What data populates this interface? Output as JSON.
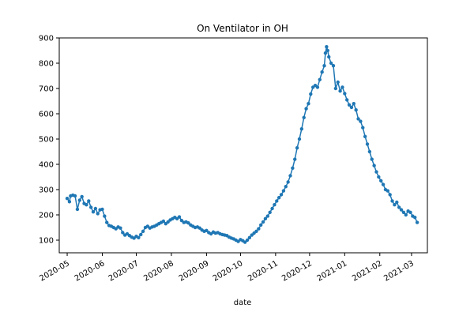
{
  "chart_data": {
    "type": "line",
    "title": "On Ventilator in OH",
    "xlabel": "date",
    "ylabel": "",
    "ylim": [
      50,
      900
    ],
    "xlim": [
      "2020-04-24",
      "2021-03-15"
    ],
    "x_ticks": [
      "2020-05",
      "2020-06",
      "2020-07",
      "2020-08",
      "2020-09",
      "2020-10",
      "2020-11",
      "2020-12",
      "2021-01",
      "2021-02",
      "2021-03"
    ],
    "y_ticks": [
      100,
      200,
      300,
      400,
      500,
      600,
      700,
      800,
      900
    ],
    "marker": "circle",
    "grid": false,
    "series": [
      {
        "color": "#1f77b4",
        "points": [
          [
            "2020-05-01",
            265
          ],
          [
            "2020-05-03",
            252
          ],
          [
            "2020-05-04",
            275
          ],
          [
            "2020-05-06",
            278
          ],
          [
            "2020-05-08",
            275
          ],
          [
            "2020-05-10",
            222
          ],
          [
            "2020-05-12",
            258
          ],
          [
            "2020-05-14",
            272
          ],
          [
            "2020-05-16",
            245
          ],
          [
            "2020-05-18",
            240
          ],
          [
            "2020-05-20",
            255
          ],
          [
            "2020-05-22",
            230
          ],
          [
            "2020-05-24",
            212
          ],
          [
            "2020-05-26",
            225
          ],
          [
            "2020-05-28",
            205
          ],
          [
            "2020-05-30",
            220
          ],
          [
            "2020-06-01",
            222
          ],
          [
            "2020-06-03",
            195
          ],
          [
            "2020-06-05",
            170
          ],
          [
            "2020-06-07",
            158
          ],
          [
            "2020-06-09",
            155
          ],
          [
            "2020-06-11",
            150
          ],
          [
            "2020-06-13",
            145
          ],
          [
            "2020-06-15",
            152
          ],
          [
            "2020-06-17",
            148
          ],
          [
            "2020-06-19",
            130
          ],
          [
            "2020-06-21",
            120
          ],
          [
            "2020-06-23",
            125
          ],
          [
            "2020-06-25",
            118
          ],
          [
            "2020-06-27",
            112
          ],
          [
            "2020-06-29",
            108
          ],
          [
            "2020-07-01",
            115
          ],
          [
            "2020-07-03",
            110
          ],
          [
            "2020-07-05",
            122
          ],
          [
            "2020-07-07",
            135
          ],
          [
            "2020-07-09",
            150
          ],
          [
            "2020-07-11",
            155
          ],
          [
            "2020-07-13",
            148
          ],
          [
            "2020-07-15",
            152
          ],
          [
            "2020-07-17",
            155
          ],
          [
            "2020-07-19",
            160
          ],
          [
            "2020-07-21",
            165
          ],
          [
            "2020-07-23",
            170
          ],
          [
            "2020-07-25",
            175
          ],
          [
            "2020-07-27",
            165
          ],
          [
            "2020-07-29",
            172
          ],
          [
            "2020-07-31",
            180
          ],
          [
            "2020-08-02",
            185
          ],
          [
            "2020-08-04",
            190
          ],
          [
            "2020-08-06",
            185
          ],
          [
            "2020-08-08",
            192
          ],
          [
            "2020-08-10",
            178
          ],
          [
            "2020-08-12",
            170
          ],
          [
            "2020-08-14",
            172
          ],
          [
            "2020-08-16",
            168
          ],
          [
            "2020-08-18",
            160
          ],
          [
            "2020-08-20",
            155
          ],
          [
            "2020-08-22",
            150
          ],
          [
            "2020-08-24",
            152
          ],
          [
            "2020-08-26",
            148
          ],
          [
            "2020-08-28",
            140
          ],
          [
            "2020-08-30",
            135
          ],
          [
            "2020-09-01",
            138
          ],
          [
            "2020-09-03",
            130
          ],
          [
            "2020-09-05",
            125
          ],
          [
            "2020-09-07",
            132
          ],
          [
            "2020-09-09",
            128
          ],
          [
            "2020-09-11",
            130
          ],
          [
            "2020-09-13",
            125
          ],
          [
            "2020-09-15",
            122
          ],
          [
            "2020-09-17",
            120
          ],
          [
            "2020-09-19",
            118
          ],
          [
            "2020-09-21",
            112
          ],
          [
            "2020-09-23",
            108
          ],
          [
            "2020-09-25",
            105
          ],
          [
            "2020-09-27",
            100
          ],
          [
            "2020-09-29",
            95
          ],
          [
            "2020-10-01",
            102
          ],
          [
            "2020-10-03",
            98
          ],
          [
            "2020-10-05",
            92
          ],
          [
            "2020-10-07",
            100
          ],
          [
            "2020-10-09",
            110
          ],
          [
            "2020-10-11",
            120
          ],
          [
            "2020-10-13",
            128
          ],
          [
            "2020-10-15",
            135
          ],
          [
            "2020-10-17",
            145
          ],
          [
            "2020-10-19",
            160
          ],
          [
            "2020-10-21",
            172
          ],
          [
            "2020-10-23",
            185
          ],
          [
            "2020-10-25",
            195
          ],
          [
            "2020-10-27",
            210
          ],
          [
            "2020-10-29",
            225
          ],
          [
            "2020-10-31",
            240
          ],
          [
            "2020-11-02",
            255
          ],
          [
            "2020-11-04",
            268
          ],
          [
            "2020-11-06",
            280
          ],
          [
            "2020-11-08",
            295
          ],
          [
            "2020-11-10",
            312
          ],
          [
            "2020-11-12",
            330
          ],
          [
            "2020-11-14",
            355
          ],
          [
            "2020-11-16",
            385
          ],
          [
            "2020-11-18",
            420
          ],
          [
            "2020-11-20",
            465
          ],
          [
            "2020-11-22",
            500
          ],
          [
            "2020-11-24",
            540
          ],
          [
            "2020-11-26",
            585
          ],
          [
            "2020-11-28",
            620
          ],
          [
            "2020-11-30",
            640
          ],
          [
            "2020-12-02",
            678
          ],
          [
            "2020-12-04",
            705
          ],
          [
            "2020-12-06",
            712
          ],
          [
            "2020-12-08",
            705
          ],
          [
            "2020-12-10",
            735
          ],
          [
            "2020-12-12",
            765
          ],
          [
            "2020-12-14",
            790
          ],
          [
            "2020-12-15",
            840
          ],
          [
            "2020-12-16",
            865
          ],
          [
            "2020-12-17",
            850
          ],
          [
            "2020-12-18",
            825
          ],
          [
            "2020-12-20",
            800
          ],
          [
            "2020-12-22",
            790
          ],
          [
            "2020-12-24",
            700
          ],
          [
            "2020-12-26",
            725
          ],
          [
            "2020-12-28",
            690
          ],
          [
            "2020-12-30",
            705
          ],
          [
            "2021-01-01",
            680
          ],
          [
            "2021-01-03",
            655
          ],
          [
            "2021-01-05",
            635
          ],
          [
            "2021-01-07",
            625
          ],
          [
            "2021-01-09",
            640
          ],
          [
            "2021-01-11",
            615
          ],
          [
            "2021-01-13",
            580
          ],
          [
            "2021-01-15",
            570
          ],
          [
            "2021-01-17",
            545
          ],
          [
            "2021-01-19",
            510
          ],
          [
            "2021-01-21",
            480
          ],
          [
            "2021-01-23",
            450
          ],
          [
            "2021-01-25",
            420
          ],
          [
            "2021-01-27",
            395
          ],
          [
            "2021-01-29",
            370
          ],
          [
            "2021-01-31",
            350
          ],
          [
            "2021-02-02",
            335
          ],
          [
            "2021-02-04",
            320
          ],
          [
            "2021-02-06",
            300
          ],
          [
            "2021-02-08",
            295
          ],
          [
            "2021-02-10",
            280
          ],
          [
            "2021-02-12",
            255
          ],
          [
            "2021-02-14",
            240
          ],
          [
            "2021-02-16",
            250
          ],
          [
            "2021-02-18",
            230
          ],
          [
            "2021-02-20",
            220
          ],
          [
            "2021-02-22",
            210
          ],
          [
            "2021-02-24",
            200
          ],
          [
            "2021-02-26",
            215
          ],
          [
            "2021-02-28",
            210
          ],
          [
            "2021-03-02",
            195
          ],
          [
            "2021-03-04",
            190
          ],
          [
            "2021-03-06",
            170
          ]
        ]
      }
    ]
  }
}
